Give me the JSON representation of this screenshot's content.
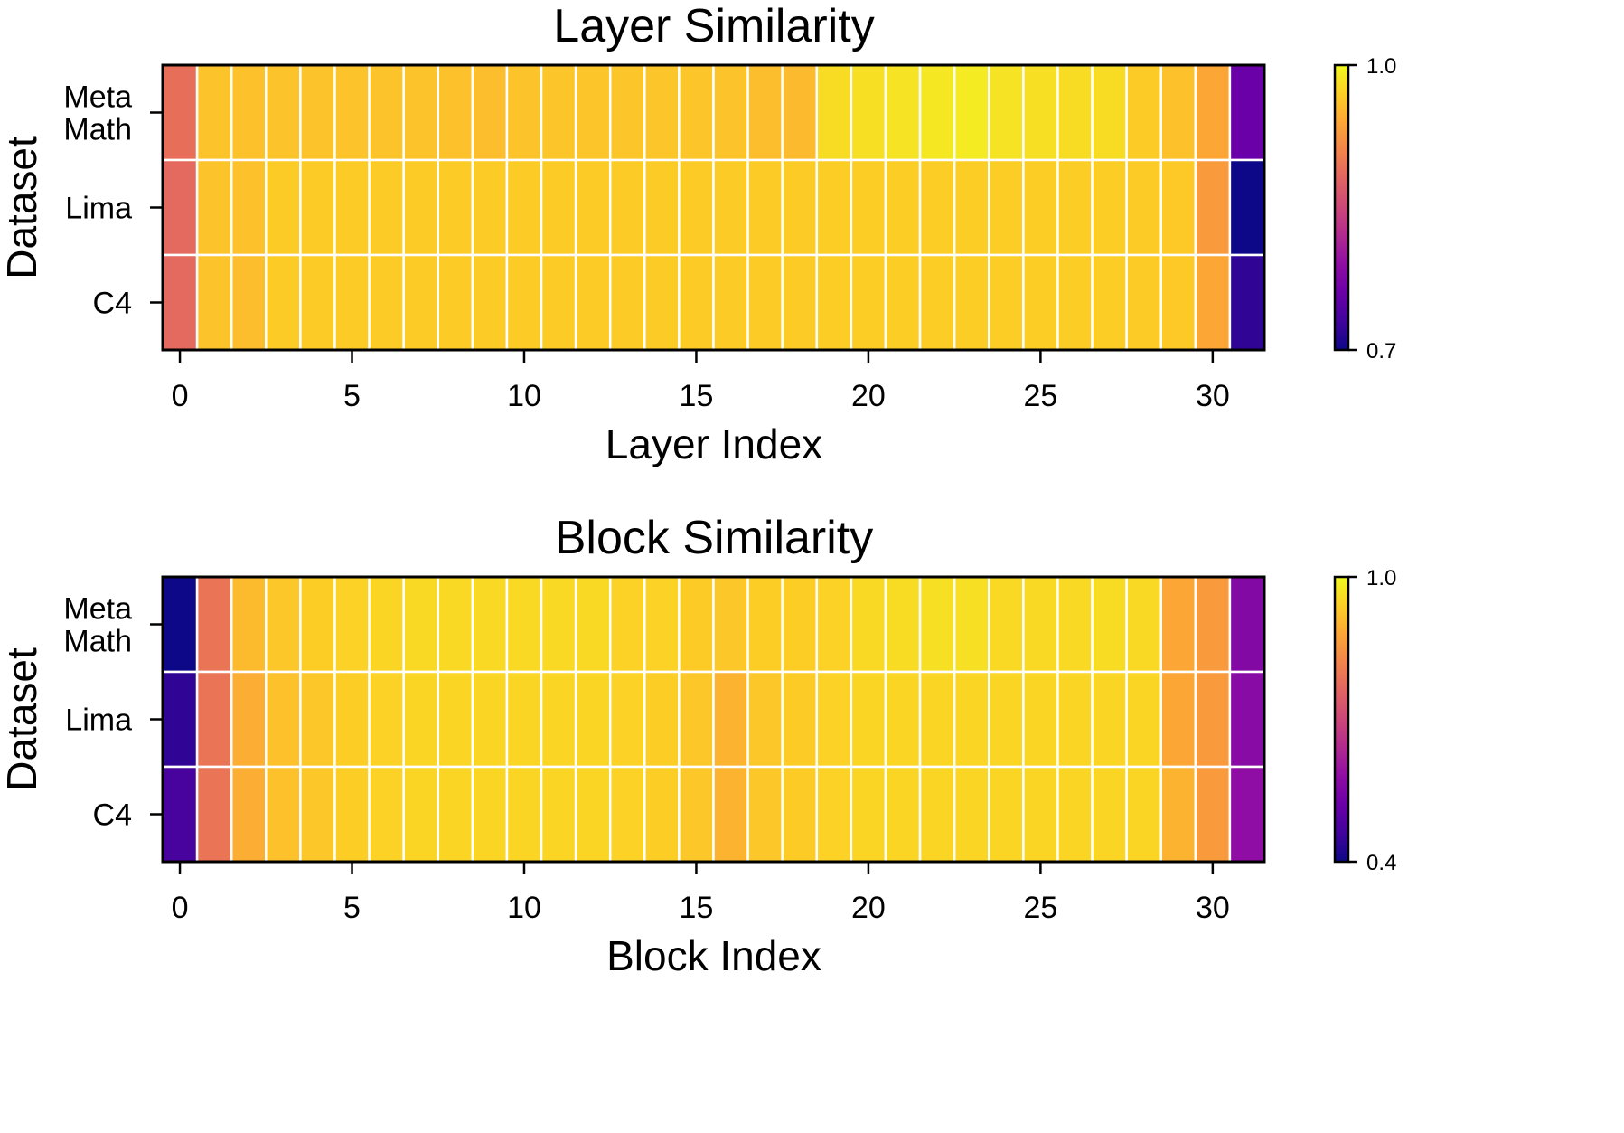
{
  "colormap": "plasma",
  "colors": {
    "cell_border": "#ffffff",
    "frame": "#000000",
    "background": "#ffffff"
  },
  "chart_data": [
    {
      "type": "heatmap",
      "title": "Layer Similarity",
      "xlabel": "Layer Index",
      "ylabel": "Dataset",
      "rows": [
        "Meta\nMath",
        "Lima",
        "C4"
      ],
      "columns": [
        0,
        1,
        2,
        3,
        4,
        5,
        6,
        7,
        8,
        9,
        10,
        11,
        12,
        13,
        14,
        15,
        16,
        17,
        18,
        19,
        20,
        21,
        22,
        23,
        24,
        25,
        26,
        27,
        28,
        29,
        30,
        31
      ],
      "x_ticks": [
        0,
        5,
        10,
        15,
        20,
        25,
        30
      ],
      "grid": true,
      "colorbar": {
        "min": 0.7,
        "max": 1.0,
        "tick_labels": [
          "1.0",
          "0.7"
        ],
        "position": "right"
      },
      "values": [
        [
          0.89,
          0.962,
          0.96,
          0.962,
          0.962,
          0.962,
          0.962,
          0.962,
          0.96,
          0.958,
          0.962,
          0.963,
          0.963,
          0.963,
          0.963,
          0.963,
          0.962,
          0.958,
          0.955,
          0.98,
          0.982,
          0.985,
          0.988,
          0.99,
          0.985,
          0.982,
          0.98,
          0.98,
          0.968,
          0.96,
          0.94,
          0.76
        ],
        [
          0.885,
          0.962,
          0.96,
          0.968,
          0.968,
          0.968,
          0.968,
          0.968,
          0.968,
          0.968,
          0.968,
          0.968,
          0.968,
          0.968,
          0.968,
          0.968,
          0.968,
          0.968,
          0.968,
          0.97,
          0.97,
          0.97,
          0.97,
          0.97,
          0.97,
          0.97,
          0.97,
          0.97,
          0.968,
          0.966,
          0.93,
          0.7
        ],
        [
          0.885,
          0.962,
          0.958,
          0.968,
          0.968,
          0.968,
          0.968,
          0.968,
          0.968,
          0.968,
          0.968,
          0.968,
          0.968,
          0.968,
          0.968,
          0.968,
          0.968,
          0.968,
          0.968,
          0.97,
          0.97,
          0.97,
          0.97,
          0.97,
          0.97,
          0.97,
          0.97,
          0.97,
          0.968,
          0.966,
          0.94,
          0.72
        ]
      ]
    },
    {
      "type": "heatmap",
      "title": "Block Similarity",
      "xlabel": "Block Index",
      "ylabel": "Dataset",
      "rows": [
        "Meta\nMath",
        "Lima",
        "C4"
      ],
      "columns": [
        0,
        1,
        2,
        3,
        4,
        5,
        6,
        7,
        8,
        9,
        10,
        11,
        12,
        13,
        14,
        15,
        16,
        17,
        18,
        19,
        20,
        21,
        22,
        23,
        24,
        25,
        26,
        27,
        28,
        29,
        30,
        31
      ],
      "x_ticks": [
        0,
        5,
        10,
        15,
        20,
        25,
        30
      ],
      "grid": true,
      "colorbar": {
        "min": 0.4,
        "max": 1.0,
        "tick_labels": [
          "1.0",
          "0.4"
        ],
        "position": "right"
      },
      "values": [
        [
          0.4,
          0.79,
          0.91,
          0.93,
          0.94,
          0.945,
          0.95,
          0.955,
          0.955,
          0.955,
          0.955,
          0.955,
          0.955,
          0.945,
          0.945,
          0.935,
          0.93,
          0.94,
          0.94,
          0.945,
          0.955,
          0.96,
          0.965,
          0.965,
          0.955,
          0.955,
          0.955,
          0.96,
          0.955,
          0.88,
          0.86,
          0.56
        ],
        [
          0.44,
          0.79,
          0.89,
          0.92,
          0.93,
          0.94,
          0.945,
          0.95,
          0.95,
          0.95,
          0.95,
          0.95,
          0.95,
          0.945,
          0.94,
          0.93,
          0.9,
          0.93,
          0.935,
          0.945,
          0.95,
          0.95,
          0.95,
          0.95,
          0.95,
          0.95,
          0.95,
          0.95,
          0.95,
          0.88,
          0.86,
          0.57
        ],
        [
          0.47,
          0.79,
          0.89,
          0.92,
          0.93,
          0.94,
          0.945,
          0.95,
          0.95,
          0.95,
          0.95,
          0.95,
          0.95,
          0.945,
          0.94,
          0.93,
          0.9,
          0.93,
          0.935,
          0.945,
          0.95,
          0.95,
          0.95,
          0.95,
          0.95,
          0.95,
          0.95,
          0.95,
          0.95,
          0.9,
          0.86,
          0.58
        ]
      ]
    }
  ]
}
